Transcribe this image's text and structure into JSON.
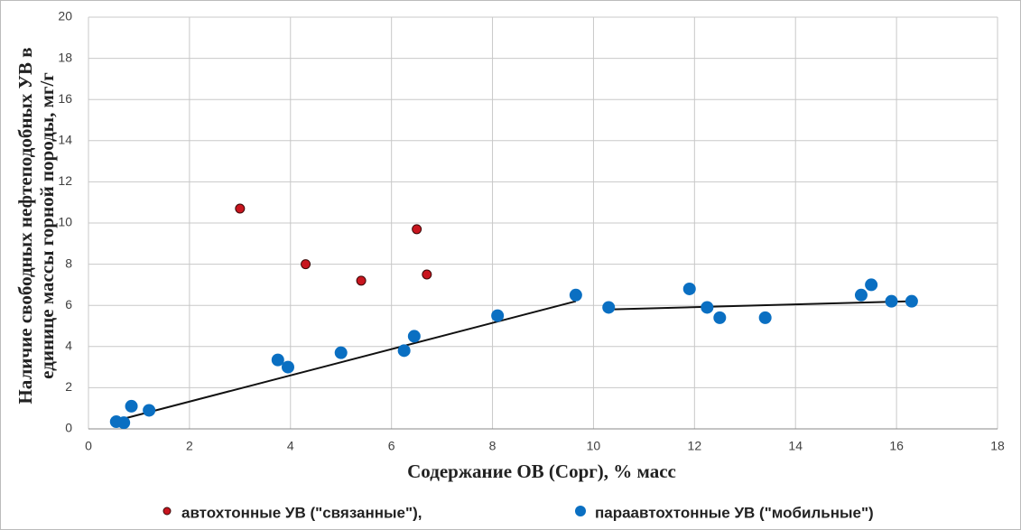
{
  "chart_data": {
    "type": "scatter",
    "x_label": "Содержание ОВ (Сорг), % масс",
    "y_label": [
      "Наличие свободных нефтеподобных УВ в",
      "единице массы горной породы, мг/г"
    ],
    "xlim": [
      0,
      18
    ],
    "xticks": [
      0,
      2,
      4,
      6,
      8,
      10,
      12,
      14,
      16,
      18
    ],
    "ylim": [
      0,
      20
    ],
    "yticks": [
      0,
      2,
      4,
      6,
      8,
      10,
      12,
      14,
      16,
      18,
      20
    ],
    "grid": true,
    "series": [
      {
        "name": "автохтонные УВ (\"связанные\"),",
        "color": "#c8151e",
        "x": [
          3.0,
          4.3,
          5.4,
          6.5,
          6.7
        ],
        "values": [
          10.7,
          8.0,
          7.2,
          9.7,
          7.5
        ]
      },
      {
        "name": "параавтохтонные УВ (\"мобильные\")",
        "color": "#0a6fc2",
        "x": [
          0.55,
          0.7,
          0.85,
          1.2,
          3.75,
          3.95,
          5.0,
          6.25,
          6.45,
          8.1,
          9.65,
          10.3,
          11.9,
          12.25,
          12.5,
          13.4,
          15.3,
          15.5,
          15.9,
          16.3
        ],
        "values": [
          0.35,
          0.3,
          1.1,
          0.9,
          3.35,
          3.0,
          3.7,
          3.8,
          4.5,
          5.5,
          6.5,
          5.9,
          6.8,
          5.9,
          5.4,
          5.4,
          6.5,
          7.0,
          6.2,
          6.2
        ]
      }
    ],
    "trendlines": [
      {
        "x": [
          0.55,
          9.65
        ],
        "values": [
          0.4,
          6.2
        ]
      },
      {
        "x": [
          10.3,
          16.3
        ],
        "values": [
          5.8,
          6.2
        ]
      }
    ]
  }
}
